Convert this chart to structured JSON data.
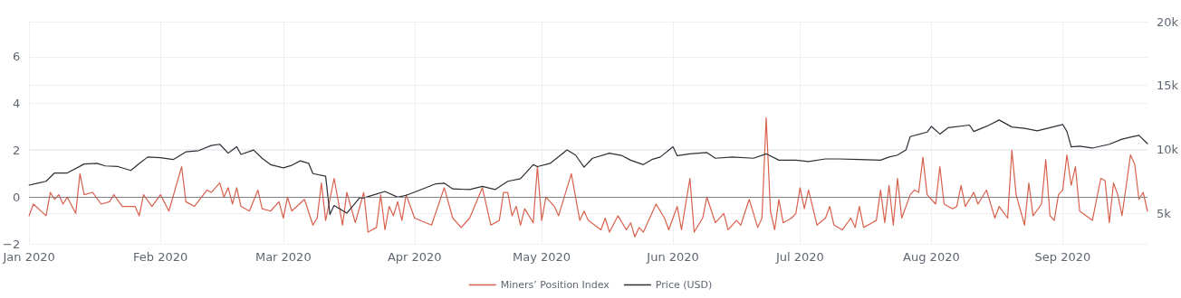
{
  "chart_data": {
    "type": "line",
    "xlim": [
      "2020-01-01",
      "2020-09-21"
    ],
    "xticks": [
      {
        "value": "2020-01-01",
        "label": "Jan 2020"
      },
      {
        "value": "2020-02-01",
        "label": "Feb 2020"
      },
      {
        "value": "2020-03-01",
        "label": "Mar 2020"
      },
      {
        "value": "2020-04-01",
        "label": "Apr 2020"
      },
      {
        "value": "2020-05-01",
        "label": "May 2020"
      },
      {
        "value": "2020-06-01",
        "label": "Jun 2020"
      },
      {
        "value": "2020-07-01",
        "label": "Jul 2020"
      },
      {
        "value": "2020-08-01",
        "label": "Aug 2020"
      },
      {
        "value": "2020-09-01",
        "label": "Sep 2020"
      }
    ],
    "ylim": [
      -2,
      7.5
    ],
    "yticks": [
      {
        "value": -2,
        "label": "−2"
      },
      0,
      2,
      4,
      6
    ],
    "y2lim": [
      2600,
      20000
    ],
    "y2ticks": [
      {
        "value": 5000,
        "label": "5k"
      },
      {
        "value": 10000,
        "label": "10k"
      },
      {
        "value": 15000,
        "label": "15k"
      },
      {
        "value": 20000,
        "label": "20k"
      }
    ],
    "grid": true,
    "legend": "bottom",
    "marker": "none",
    "line_style": "solid",
    "ref_lines": [
      {
        "axis": "y",
        "value": 0,
        "label": null,
        "color": "#808080"
      }
    ],
    "series": [
      {
        "name": "Miners’ Position Index",
        "color": "#d9604c",
        "x": [
          "2020-01-01",
          "2020-01-02",
          "2020-01-05",
          "2020-01-06",
          "2020-01-07",
          "2020-01-08",
          "2020-01-09",
          "2020-01-10",
          "2020-01-12",
          "2020-01-13",
          "2020-01-14",
          "2020-01-16",
          "2020-01-18",
          "2020-01-20",
          "2020-01-21",
          "2020-01-23",
          "2020-01-26",
          "2020-01-27",
          "2020-01-28",
          "2020-01-30",
          "2020-02-01",
          "2020-02-03",
          "2020-02-06",
          "2020-02-07",
          "2020-02-09",
          "2020-02-12",
          "2020-02-13",
          "2020-02-15",
          "2020-02-16",
          "2020-02-17",
          "2020-02-18",
          "2020-02-19",
          "2020-02-20",
          "2020-02-22",
          "2020-02-24",
          "2020-02-25",
          "2020-02-27",
          "2020-02-29",
          "2020-03-01",
          "2020-03-02",
          "2020-03-03",
          "2020-03-06",
          "2020-03-08",
          "2020-03-09",
          "2020-03-10",
          "2020-03-11",
          "2020-03-13",
          "2020-03-15",
          "2020-03-16",
          "2020-03-18",
          "2020-03-20",
          "2020-03-21",
          "2020-03-23",
          "2020-03-24",
          "2020-03-25",
          "2020-03-26",
          "2020-03-27",
          "2020-03-28",
          "2020-03-29",
          "2020-03-30",
          "2020-04-01",
          "2020-04-05",
          "2020-04-08",
          "2020-04-10",
          "2020-04-12",
          "2020-04-14",
          "2020-04-17",
          "2020-04-19",
          "2020-04-21",
          "2020-04-22",
          "2020-04-23",
          "2020-04-24",
          "2020-04-25",
          "2020-04-26",
          "2020-04-27",
          "2020-04-29",
          "2020-04-30",
          "2020-05-01",
          "2020-05-02",
          "2020-05-04",
          "2020-05-05",
          "2020-05-08",
          "2020-05-10",
          "2020-05-11",
          "2020-05-12",
          "2020-05-15",
          "2020-05-16",
          "2020-05-17",
          "2020-05-19",
          "2020-05-21",
          "2020-05-22",
          "2020-05-23",
          "2020-05-24",
          "2020-05-25",
          "2020-05-28",
          "2020-05-30",
          "2020-05-31",
          "2020-06-02",
          "2020-06-03",
          "2020-06-05",
          "2020-06-06",
          "2020-06-08",
          "2020-06-09",
          "2020-06-11",
          "2020-06-13",
          "2020-06-14",
          "2020-06-16",
          "2020-06-17",
          "2020-06-19",
          "2020-06-21",
          "2020-06-22",
          "2020-06-23",
          "2020-06-24",
          "2020-06-25",
          "2020-06-26",
          "2020-06-27",
          "2020-06-29",
          "2020-06-30",
          "2020-07-01",
          "2020-07-02",
          "2020-07-03",
          "2020-07-05",
          "2020-07-07",
          "2020-07-08",
          "2020-07-09",
          "2020-07-11",
          "2020-07-13",
          "2020-07-14",
          "2020-07-15",
          "2020-07-16",
          "2020-07-18",
          "2020-07-19",
          "2020-07-20",
          "2020-07-21",
          "2020-07-22",
          "2020-07-23",
          "2020-07-24",
          "2020-07-25",
          "2020-07-27",
          "2020-07-28",
          "2020-07-29",
          "2020-07-30",
          "2020-07-31",
          "2020-08-02",
          "2020-08-03",
          "2020-08-04",
          "2020-08-06",
          "2020-08-07",
          "2020-08-08",
          "2020-08-09",
          "2020-08-11",
          "2020-08-12",
          "2020-08-14",
          "2020-08-16",
          "2020-08-17",
          "2020-08-19",
          "2020-08-20",
          "2020-08-21",
          "2020-08-23",
          "2020-08-24",
          "2020-08-25",
          "2020-08-27",
          "2020-08-28",
          "2020-08-29",
          "2020-08-30",
          "2020-08-31",
          "2020-09-01",
          "2020-09-02",
          "2020-09-03",
          "2020-09-04",
          "2020-09-05",
          "2020-09-08",
          "2020-09-10",
          "2020-09-11",
          "2020-09-12",
          "2020-09-13",
          "2020-09-14",
          "2020-09-15",
          "2020-09-17",
          "2020-09-18",
          "2020-09-19",
          "2020-09-20",
          "2020-09-21"
        ],
        "values": [
          -0.8,
          -0.3,
          -0.8,
          0.2,
          -0.1,
          0.1,
          -0.3,
          0,
          -0.7,
          1,
          0.1,
          0.2,
          -0.3,
          -0.2,
          0.1,
          -0.4,
          -0.4,
          -0.8,
          0.1,
          -0.4,
          0.1,
          -0.6,
          1.3,
          -0.2,
          -0.4,
          0.3,
          0.2,
          0.6,
          0,
          0.4,
          -0.3,
          0.4,
          -0.4,
          -0.6,
          0.3,
          -0.5,
          -0.6,
          -0.2,
          -0.9,
          0,
          -0.6,
          -0.1,
          -1.2,
          -0.9,
          0.6,
          -1,
          0.8,
          -1.2,
          0.2,
          -1.1,
          0.2,
          -1.5,
          -1.3,
          0.1,
          -1.4,
          -0.4,
          -0.8,
          -0.2,
          -1,
          0.1,
          -0.9,
          -1.2,
          0.4,
          -0.9,
          -1.3,
          -0.9,
          0.4,
          -1.2,
          -1,
          0.2,
          0.2,
          -0.8,
          -0.4,
          -1.2,
          -0.5,
          -1.1,
          1.3,
          -1,
          0,
          -0.4,
          -0.8,
          1,
          -1,
          -0.6,
          -1,
          -1.4,
          -0.9,
          -1.5,
          -0.8,
          -1.4,
          -1.1,
          -1.7,
          -1.3,
          -1.5,
          -0.3,
          -0.9,
          -1.4,
          -0.4,
          -1.4,
          0.8,
          -1.5,
          -0.9,
          0,
          -1.1,
          -0.7,
          -1.4,
          -1,
          -1.2,
          -0.1,
          -1.3,
          -0.9,
          3.4,
          -0.6,
          -1.4,
          -0.1,
          -1.1,
          -0.9,
          -0.7,
          0.4,
          -0.5,
          0.3,
          -1.2,
          -0.9,
          -0.4,
          -1.2,
          -1.4,
          -0.9,
          -1.3,
          -0.4,
          -1.3,
          -1.1,
          -1,
          0.3,
          -1.1,
          0.5,
          -1.2,
          0.8,
          -0.9,
          0.1,
          0.3,
          0.2,
          1.7,
          0.1,
          -0.3,
          1.3,
          -0.3,
          -0.5,
          -0.4,
          0.5,
          -0.4,
          0.2,
          -0.3,
          0.3,
          -0.9,
          -0.4,
          -0.9,
          2,
          0.1,
          -1.2,
          0.6,
          -0.8,
          -0.3,
          1.6,
          -0.8,
          -1,
          0.1,
          0.3,
          1.8,
          0.5,
          1.3,
          -0.6,
          -1,
          0.8,
          0.7,
          -1.1,
          0.6,
          0.1,
          -0.8,
          1.8,
          1.4,
          -0.1,
          0.2,
          -0.6
        ]
      },
      {
        "name": "Price (USD)",
        "color": "#2b2f36",
        "axis": "y2",
        "x": [
          "2020-01-01",
          "2020-01-03",
          "2020-01-05",
          "2020-01-07",
          "2020-01-10",
          "2020-01-14",
          "2020-01-17",
          "2020-01-19",
          "2020-01-22",
          "2020-01-25",
          "2020-01-27",
          "2020-01-29",
          "2020-02-01",
          "2020-02-04",
          "2020-02-07",
          "2020-02-10",
          "2020-02-13",
          "2020-02-15",
          "2020-02-17",
          "2020-02-19",
          "2020-02-20",
          "2020-02-23",
          "2020-02-25",
          "2020-02-27",
          "2020-03-01",
          "2020-03-03",
          "2020-03-05",
          "2020-03-07",
          "2020-03-08",
          "2020-03-11",
          "2020-03-12",
          "2020-03-13",
          "2020-03-16",
          "2020-03-19",
          "2020-03-20",
          "2020-03-23",
          "2020-03-25",
          "2020-03-28",
          "2020-03-30",
          "2020-04-01",
          "2020-04-06",
          "2020-04-08",
          "2020-04-10",
          "2020-04-14",
          "2020-04-17",
          "2020-04-20",
          "2020-04-23",
          "2020-04-26",
          "2020-04-29",
          "2020-04-30",
          "2020-05-03",
          "2020-05-07",
          "2020-05-09",
          "2020-05-11",
          "2020-05-13",
          "2020-05-17",
          "2020-05-20",
          "2020-05-22",
          "2020-05-25",
          "2020-05-27",
          "2020-05-29",
          "2020-06-01",
          "2020-06-02",
          "2020-06-05",
          "2020-06-09",
          "2020-06-11",
          "2020-06-15",
          "2020-06-20",
          "2020-06-23",
          "2020-06-26",
          "2020-06-30",
          "2020-07-03",
          "2020-07-07",
          "2020-07-10",
          "2020-07-15",
          "2020-07-20",
          "2020-07-22",
          "2020-07-24",
          "2020-07-26",
          "2020-07-27",
          "2020-07-31",
          "2020-08-01",
          "2020-08-03",
          "2020-08-05",
          "2020-08-10",
          "2020-08-11",
          "2020-08-14",
          "2020-08-17",
          "2020-08-20",
          "2020-08-23",
          "2020-08-26",
          "2020-08-29",
          "2020-09-01",
          "2020-09-02",
          "2020-09-03",
          "2020-09-05",
          "2020-09-08",
          "2020-09-12",
          "2020-09-15",
          "2020-09-17",
          "2020-09-19",
          "2020-09-21"
        ],
        "values": [
          7200,
          7350,
          7500,
          8150,
          8150,
          8850,
          8900,
          8700,
          8650,
          8350,
          8900,
          9400,
          9350,
          9200,
          9800,
          9900,
          10300,
          10400,
          9700,
          10200,
          9600,
          9950,
          9300,
          8800,
          8550,
          8750,
          9100,
          8900,
          8100,
          7900,
          4900,
          5600,
          5000,
          6200,
          6200,
          6500,
          6700,
          6250,
          6400,
          6650,
          7300,
          7350,
          6900,
          6850,
          7100,
          6850,
          7500,
          7700,
          8800,
          8650,
          8900,
          9950,
          9550,
          8600,
          9300,
          9700,
          9500,
          9150,
          8800,
          9200,
          9400,
          10200,
          9500,
          9650,
          9750,
          9300,
          9400,
          9300,
          9650,
          9150,
          9150,
          9050,
          9250,
          9250,
          9200,
          9150,
          9400,
          9550,
          9950,
          11000,
          11350,
          11800,
          11200,
          11700,
          11900,
          11400,
          11800,
          12300,
          11750,
          11650,
          11450,
          11700,
          11950,
          11400,
          10200,
          10250,
          10100,
          10400,
          10800,
          10950,
          11100,
          10450
        ]
      }
    ]
  }
}
